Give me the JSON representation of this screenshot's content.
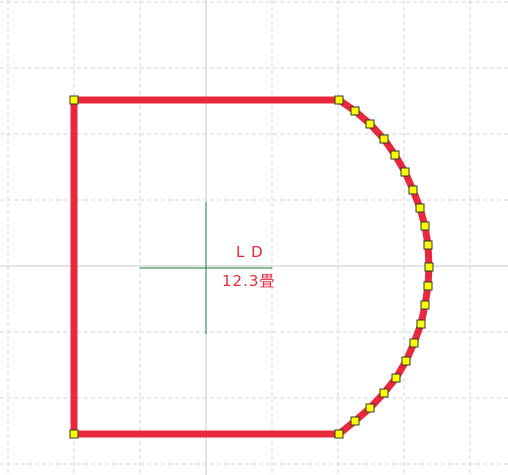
{
  "room": {
    "name": "L D",
    "area": "12.3畳"
  },
  "colors": {
    "background": "#ffffff",
    "grid_major": "#c9c9c9",
    "grid_minor": "#d6d6d6",
    "wall": "#e8283c",
    "handle_fill": "#ffff00",
    "handle_stroke": "#333333",
    "center_cross": "#1f7a3a",
    "label": "#e8283c"
  },
  "icons": {
    "vertex_handle": "yellow-square-handle",
    "center_marker": "crosshair"
  }
}
